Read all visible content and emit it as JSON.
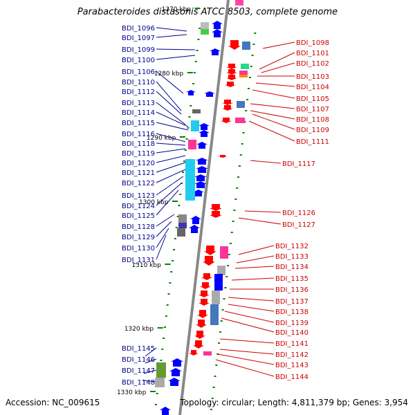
{
  "title": "Parabacteroides distasonis ATCC 8503, complete genome",
  "footer": {
    "accession": "Accession: NC_009615",
    "topology": "Topology: circular; Length: 4,811,379 bp; Genes: 3,954"
  },
  "colors": {
    "left_label": "#00008b",
    "right_label": "#cc0000",
    "forward_gene": "#0000ff",
    "reverse_gene": "#ff0000",
    "backbone": "#888888",
    "tick": "#008000"
  },
  "ruler": [
    {
      "label": "1270 kbp"
    },
    {
      "label": "1280 kbp"
    },
    {
      "label": "1290 kbp"
    },
    {
      "label": "1300 kbp"
    },
    {
      "label": "1310 kbp"
    },
    {
      "label": "1320 kbp"
    },
    {
      "label": "1330 kbp"
    }
  ],
  "left_genes": [
    "BDI_1096",
    "BDI_1097",
    "BDI_1099",
    "BDI_1100",
    "BDI_1106",
    "BDI_1110",
    "BDI_1112",
    "BDI_1113",
    "BDI_1114",
    "BDI_1115",
    "BDI_1116",
    "BDI_1118",
    "BDI_1119",
    "BDI_1120",
    "BDI_1121",
    "BDI_1122",
    "BDI_1123",
    "BDI_1124",
    "BDI_1125",
    "BDI_1128",
    "BDI_1129",
    "BDI_1130",
    "BDI_1131",
    "BDI_1145",
    "BDI_1146",
    "BDI_1147",
    "BDI_1148"
  ],
  "right_genes": [
    "BDI_1098",
    "BDI_1101",
    "BDI_1102",
    "BDI_1103",
    "BDI_1104",
    "BDI_1105",
    "BDI_1107",
    "BDI_1108",
    "BDI_1109",
    "BDI_1111",
    "BDI_1117",
    "BDI_1126",
    "BDI_1127",
    "BDI_1132",
    "BDI_1133",
    "BDI_1134",
    "BDI_1135",
    "BDI_1136",
    "BDI_1137",
    "BDI_1138",
    "BDI_1139",
    "BDI_1140",
    "BDI_1141",
    "BDI_1142",
    "BDI_1143",
    "BDI_1144"
  ]
}
